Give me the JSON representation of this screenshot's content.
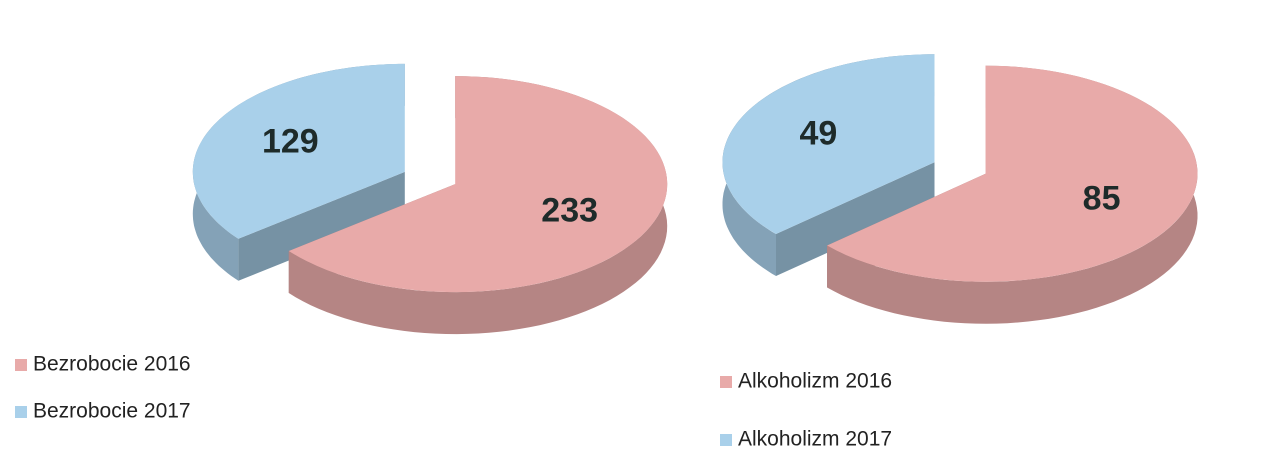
{
  "chart_data": [
    {
      "type": "pie",
      "categories": [
        "Bezrobocie 2016",
        "Bezrobocie 2017"
      ],
      "values": [
        233,
        129
      ],
      "colors": [
        "#e8aaa9",
        "#a9d0ea"
      ],
      "legend": "bottom-left"
    },
    {
      "type": "pie",
      "categories": [
        "Alkoholizm 2016",
        "Alkoholizm 2017"
      ],
      "values": [
        85,
        49
      ],
      "colors": [
        "#e8aaa9",
        "#a9d0ea"
      ],
      "legend": "bottom-left"
    }
  ]
}
